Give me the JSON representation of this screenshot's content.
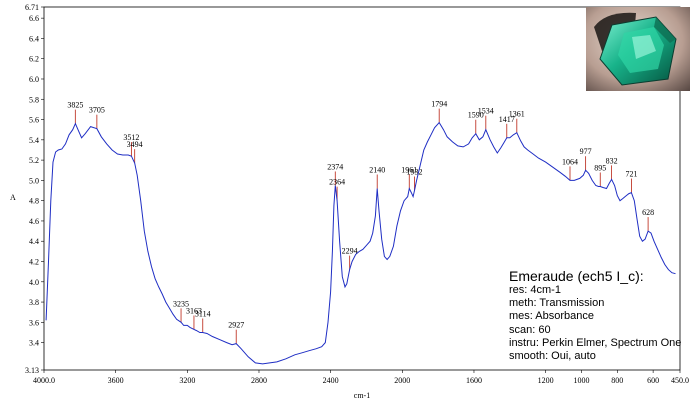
{
  "chart_data": {
    "type": "line",
    "xlabel": "cm-1",
    "ylabel": "A",
    "xlim": [
      4000.0,
      450.0
    ],
    "ylim": [
      3.13,
      6.71
    ],
    "x_ticks": [
      "4000.0",
      "3600",
      "3200",
      "2800",
      "2400",
      "2000",
      "1600",
      "1200",
      "1000",
      "800",
      "600",
      "450.0"
    ],
    "y_ticks": [
      "3.13",
      "3.4",
      "3.6",
      "3.8",
      "4.0",
      "4.2",
      "4.4",
      "4.6",
      "4.8",
      "5.0",
      "5.2",
      "5.4",
      "5.6",
      "5.8",
      "6.0",
      "6.2",
      "6.4",
      "6.6",
      "6.71"
    ],
    "series": [
      {
        "color": "#1f2ec4",
        "points": [
          [
            3988,
            3.62
          ],
          [
            3975,
            4.2
          ],
          [
            3962,
            4.8
          ],
          [
            3950,
            5.18
          ],
          [
            3935,
            5.28
          ],
          [
            3920,
            5.3
          ],
          [
            3900,
            5.31
          ],
          [
            3880,
            5.36
          ],
          [
            3860,
            5.45
          ],
          [
            3840,
            5.5
          ],
          [
            3825,
            5.56
          ],
          [
            3810,
            5.5
          ],
          [
            3790,
            5.42
          ],
          [
            3770,
            5.46
          ],
          [
            3740,
            5.53
          ],
          [
            3705,
            5.51
          ],
          [
            3680,
            5.43
          ],
          [
            3650,
            5.36
          ],
          [
            3620,
            5.3
          ],
          [
            3590,
            5.26
          ],
          [
            3560,
            5.25
          ],
          [
            3530,
            5.25
          ],
          [
            3512,
            5.24
          ],
          [
            3494,
            5.17
          ],
          [
            3480,
            5.05
          ],
          [
            3460,
            4.8
          ],
          [
            3440,
            4.5
          ],
          [
            3420,
            4.3
          ],
          [
            3400,
            4.15
          ],
          [
            3380,
            4.03
          ],
          [
            3360,
            3.95
          ],
          [
            3340,
            3.88
          ],
          [
            3320,
            3.8
          ],
          [
            3300,
            3.74
          ],
          [
            3280,
            3.68
          ],
          [
            3260,
            3.63
          ],
          [
            3235,
            3.6
          ],
          [
            3220,
            3.57
          ],
          [
            3200,
            3.57
          ],
          [
            3185,
            3.55
          ],
          [
            3163,
            3.53
          ],
          [
            3150,
            3.52
          ],
          [
            3130,
            3.5
          ],
          [
            3114,
            3.5
          ],
          [
            3090,
            3.49
          ],
          [
            3060,
            3.46
          ],
          [
            3020,
            3.43
          ],
          [
            2980,
            3.4
          ],
          [
            2950,
            3.38
          ],
          [
            2927,
            3.39
          ],
          [
            2900,
            3.34
          ],
          [
            2860,
            3.26
          ],
          [
            2820,
            3.2
          ],
          [
            2780,
            3.19
          ],
          [
            2740,
            3.2
          ],
          [
            2700,
            3.21
          ],
          [
            2650,
            3.24
          ],
          [
            2600,
            3.28
          ],
          [
            2560,
            3.3
          ],
          [
            2520,
            3.32
          ],
          [
            2480,
            3.34
          ],
          [
            2450,
            3.36
          ],
          [
            2430,
            3.4
          ],
          [
            2415,
            3.6
          ],
          [
            2400,
            3.9
          ],
          [
            2390,
            4.3
          ],
          [
            2382,
            4.75
          ],
          [
            2374,
            4.95
          ],
          [
            2364,
            4.8
          ],
          [
            2350,
            4.4
          ],
          [
            2335,
            4.05
          ],
          [
            2320,
            3.95
          ],
          [
            2310,
            3.98
          ],
          [
            2294,
            4.12
          ],
          [
            2280,
            4.2
          ],
          [
            2260,
            4.27
          ],
          [
            2240,
            4.3
          ],
          [
            2220,
            4.32
          ],
          [
            2200,
            4.36
          ],
          [
            2180,
            4.4
          ],
          [
            2165,
            4.48
          ],
          [
            2150,
            4.65
          ],
          [
            2140,
            4.92
          ],
          [
            2130,
            4.7
          ],
          [
            2115,
            4.42
          ],
          [
            2100,
            4.25
          ],
          [
            2085,
            4.22
          ],
          [
            2070,
            4.25
          ],
          [
            2050,
            4.35
          ],
          [
            2030,
            4.55
          ],
          [
            2010,
            4.7
          ],
          [
            1990,
            4.8
          ],
          [
            1970,
            4.84
          ],
          [
            1961,
            4.92
          ],
          [
            1950,
            4.88
          ],
          [
            1940,
            4.84
          ],
          [
            1932,
            4.9
          ],
          [
            1920,
            5.0
          ],
          [
            1900,
            5.15
          ],
          [
            1880,
            5.3
          ],
          [
            1860,
            5.38
          ],
          [
            1840,
            5.45
          ],
          [
            1820,
            5.52
          ],
          [
            1794,
            5.57
          ],
          [
            1770,
            5.5
          ],
          [
            1750,
            5.43
          ],
          [
            1720,
            5.38
          ],
          [
            1690,
            5.34
          ],
          [
            1660,
            5.33
          ],
          [
            1630,
            5.36
          ],
          [
            1610,
            5.42
          ],
          [
            1590,
            5.46
          ],
          [
            1570,
            5.4
          ],
          [
            1550,
            5.43
          ],
          [
            1534,
            5.5
          ],
          [
            1510,
            5.4
          ],
          [
            1490,
            5.33
          ],
          [
            1470,
            5.27
          ],
          [
            1450,
            5.32
          ],
          [
            1430,
            5.38
          ],
          [
            1417,
            5.42
          ],
          [
            1400,
            5.42
          ],
          [
            1380,
            5.45
          ],
          [
            1361,
            5.47
          ],
          [
            1340,
            5.39
          ],
          [
            1320,
            5.33
          ],
          [
            1300,
            5.3
          ],
          [
            1270,
            5.26
          ],
          [
            1240,
            5.22
          ],
          [
            1200,
            5.18
          ],
          [
            1160,
            5.13
          ],
          [
            1120,
            5.08
          ],
          [
            1090,
            5.04
          ],
          [
            1064,
            5.0
          ],
          [
            1040,
            5.0
          ],
          [
            1010,
            5.02
          ],
          [
            990,
            5.05
          ],
          [
            977,
            5.1
          ],
          [
            960,
            5.07
          ],
          [
            940,
            5.0
          ],
          [
            920,
            4.95
          ],
          [
            905,
            4.94
          ],
          [
            895,
            4.94
          ],
          [
            880,
            4.93
          ],
          [
            860,
            4.92
          ],
          [
            845,
            4.97
          ],
          [
            832,
            5.01
          ],
          [
            815,
            4.95
          ],
          [
            800,
            4.85
          ],
          [
            785,
            4.8
          ],
          [
            770,
            4.82
          ],
          [
            750,
            4.85
          ],
          [
            735,
            4.87
          ],
          [
            721,
            4.88
          ],
          [
            705,
            4.8
          ],
          [
            690,
            4.62
          ],
          [
            675,
            4.45
          ],
          [
            660,
            4.4
          ],
          [
            645,
            4.42
          ],
          [
            628,
            4.5
          ],
          [
            612,
            4.48
          ],
          [
            595,
            4.4
          ],
          [
            575,
            4.32
          ],
          [
            555,
            4.24
          ],
          [
            535,
            4.17
          ],
          [
            515,
            4.12
          ],
          [
            495,
            4.09
          ],
          [
            475,
            4.08
          ]
        ]
      }
    ],
    "peaks": [
      {
        "label": "3825",
        "x": 3825,
        "y": 5.56
      },
      {
        "label": "3705",
        "x": 3705,
        "y": 5.51
      },
      {
        "label": "3512",
        "x": 3512,
        "y": 5.24
      },
      {
        "label": "3494",
        "x": 3494,
        "y": 5.17
      },
      {
        "label": "3235",
        "x": 3235,
        "y": 3.6
      },
      {
        "label": "3163",
        "x": 3163,
        "y": 3.53
      },
      {
        "label": "3114",
        "x": 3114,
        "y": 3.5
      },
      {
        "label": "2927",
        "x": 2927,
        "y": 3.39
      },
      {
        "label": "2374",
        "x": 2374,
        "y": 4.95
      },
      {
        "label": "2364",
        "x": 2364,
        "y": 4.8
      },
      {
        "label": "2294",
        "x": 2294,
        "y": 4.12
      },
      {
        "label": "2140",
        "x": 2140,
        "y": 4.92
      },
      {
        "label": "1961",
        "x": 1961,
        "y": 4.92
      },
      {
        "label": "1932",
        "x": 1932,
        "y": 4.9
      },
      {
        "label": "1794",
        "x": 1794,
        "y": 5.57
      },
      {
        "label": "1590",
        "x": 1590,
        "y": 5.46
      },
      {
        "label": "1534",
        "x": 1534,
        "y": 5.5
      },
      {
        "label": "1417",
        "x": 1417,
        "y": 5.42
      },
      {
        "label": "1361",
        "x": 1361,
        "y": 5.47
      },
      {
        "label": "1064",
        "x": 1064,
        "y": 5.0
      },
      {
        "label": "977",
        "x": 977,
        "y": 5.1
      },
      {
        "label": "895",
        "x": 895,
        "y": 4.94
      },
      {
        "label": "832",
        "x": 832,
        "y": 5.01
      },
      {
        "label": "721",
        "x": 721,
        "y": 4.88
      },
      {
        "label": "628",
        "x": 628,
        "y": 4.5
      }
    ]
  },
  "info": {
    "title": "Emeraude  (ech5 I_c):",
    "lines": [
      "res: 4cm-1",
      "meth: Transmission",
      "mes: Absorbance",
      "scan: 60",
      "instru: Perkin Elmer, Spectrum One",
      "smooth: Oui, auto"
    ]
  },
  "photo": {
    "icon": "emerald-gem-photo"
  },
  "colors": {
    "trace": "#1f2ec4",
    "peak_marker": "#c0392b",
    "frame": "#000000"
  }
}
